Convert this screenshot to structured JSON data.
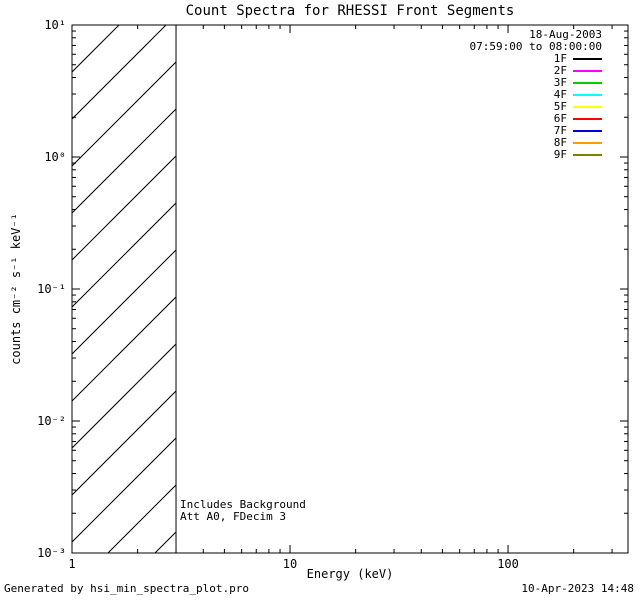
{
  "chart_data": {
    "type": "line",
    "title": "Count Spectra for RHESSI Front Segments",
    "xlabel": "Energy (keV)",
    "ylabel": "counts cm⁻² s⁻¹ keV⁻¹",
    "x_scale": "log",
    "y_scale": "log",
    "xlim": [
      1,
      355
    ],
    "ylim": [
      0.001,
      10
    ],
    "grid": false,
    "x_ticks": [
      {
        "value": 1,
        "label": "1"
      },
      {
        "value": 10,
        "label": "10"
      },
      {
        "value": 100,
        "label": "100"
      }
    ],
    "y_ticks": [
      {
        "value": 0.001,
        "label": "10⁻³"
      },
      {
        "value": 0.01,
        "label": "10⁻²"
      },
      {
        "value": 0.1,
        "label": "10⁻¹"
      },
      {
        "value": 1,
        "label": "10⁰"
      },
      {
        "value": 10,
        "label": "10¹"
      }
    ],
    "series": [],
    "hatched_region": {
      "x_start": 1,
      "x_end": 3,
      "style": "diagonal-hatch",
      "note": "hatched band from 1 to 3 keV spanning full y-range"
    },
    "annotations": [
      "Includes Background",
      "Att A0, FDecim 3"
    ],
    "legend": {
      "position": "top-right",
      "date": "18-Aug-2003",
      "time_range": "07:59:00 to 08:00:00",
      "entries": [
        {
          "label": "1F",
          "color": "#000000"
        },
        {
          "label": "2F",
          "color": "#ff00ff"
        },
        {
          "label": "3F",
          "color": "#00cc00"
        },
        {
          "label": "4F",
          "color": "#00ffff"
        },
        {
          "label": "5F",
          "color": "#ffff00"
        },
        {
          "label": "6F",
          "color": "#ff0000"
        },
        {
          "label": "7F",
          "color": "#0000dd"
        },
        {
          "label": "8F",
          "color": "#ff9900"
        },
        {
          "label": "9F",
          "color": "#808000"
        }
      ]
    }
  },
  "footer": {
    "left": "Generated by hsi_min_spectra_plot.pro",
    "right": "10-Apr-2023 14:48"
  }
}
